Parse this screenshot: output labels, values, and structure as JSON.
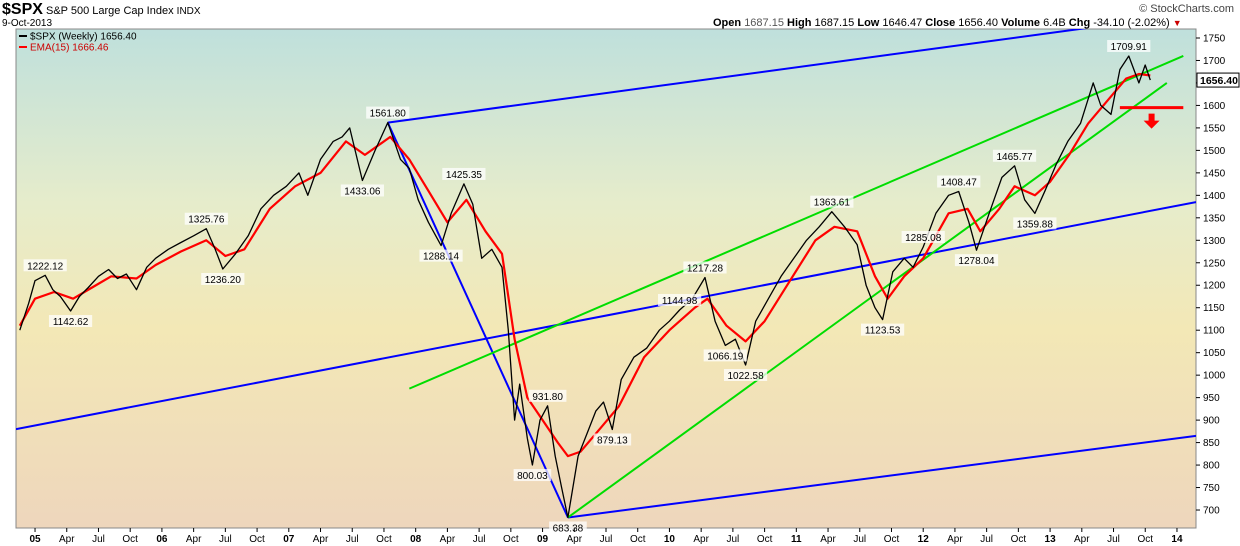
{
  "header": {
    "symbol": "$SPX",
    "name": "S&P 500 Large Cap Index",
    "exchange": "INDX",
    "date": "9-Oct-2013",
    "open_label": "Open",
    "open": "1687.15",
    "high_label": "High",
    "high": "1687.15",
    "low_label": "Low",
    "low": "1646.47",
    "close_label": "Close",
    "close": "1656.40",
    "volume_label": "Volume",
    "volume": "6.4B",
    "chg_label": "Chg",
    "chg": "-34.10 (-2.02%)",
    "watermark": "© StockCharts.com"
  },
  "chart_data": {
    "type": "line",
    "legend": [
      {
        "name": "$SPX (Weekly) 1656.40",
        "color": "#000000"
      },
      {
        "name": "EMA(15) 1666.46",
        "color": "#ff0000"
      }
    ],
    "legend_placement": "top-left",
    "last_price_tag": "1656.40",
    "x_ticks": [
      "05",
      "Apr",
      "Jul",
      "Oct",
      "06",
      "Apr",
      "Jul",
      "Oct",
      "07",
      "Apr",
      "Jul",
      "Oct",
      "08",
      "Apr",
      "Jul",
      "Oct",
      "09",
      "Apr",
      "Jul",
      "Oct",
      "10",
      "Apr",
      "Jul",
      "Oct",
      "11",
      "Apr",
      "Jul",
      "Oct",
      "12",
      "Apr",
      "Jul",
      "Oct",
      "13",
      "Apr",
      "Jul",
      "Oct",
      "14"
    ],
    "y_ticks": [
      700,
      750,
      800,
      850,
      900,
      950,
      1000,
      1050,
      1100,
      1150,
      1200,
      1250,
      1300,
      1350,
      1400,
      1450,
      1500,
      1550,
      1600,
      1650,
      1700,
      1750
    ],
    "ylim": [
      660,
      1770
    ],
    "xlim": [
      2004.85,
      2014.15
    ],
    "grid": false,
    "series": [
      {
        "color": "#000000",
        "points": [
          [
            2004.88,
            1100
          ],
          [
            2004.95,
            1160
          ],
          [
            2005.0,
            1210
          ],
          [
            2005.08,
            1222.12
          ],
          [
            2005.14,
            1190
          ],
          [
            2005.2,
            1175
          ],
          [
            2005.28,
            1142.62
          ],
          [
            2005.35,
            1175
          ],
          [
            2005.42,
            1195
          ],
          [
            2005.5,
            1220
          ],
          [
            2005.58,
            1235
          ],
          [
            2005.65,
            1215
          ],
          [
            2005.72,
            1225
          ],
          [
            2005.8,
            1190
          ],
          [
            2005.88,
            1240
          ],
          [
            2005.95,
            1260
          ],
          [
            2006.05,
            1280
          ],
          [
            2006.15,
            1295
          ],
          [
            2006.25,
            1310
          ],
          [
            2006.35,
            1325.76
          ],
          [
            2006.42,
            1280
          ],
          [
            2006.48,
            1236.2
          ],
          [
            2006.58,
            1270
          ],
          [
            2006.68,
            1310
          ],
          [
            2006.78,
            1370
          ],
          [
            2006.88,
            1400
          ],
          [
            2006.98,
            1420
          ],
          [
            2007.08,
            1450
          ],
          [
            2007.15,
            1400
          ],
          [
            2007.25,
            1480
          ],
          [
            2007.35,
            1520
          ],
          [
            2007.42,
            1530
          ],
          [
            2007.48,
            1550
          ],
          [
            2007.58,
            1433.06
          ],
          [
            2007.68,
            1500
          ],
          [
            2007.78,
            1561.8
          ],
          [
            2007.88,
            1480
          ],
          [
            2007.95,
            1460
          ],
          [
            2008.02,
            1390
          ],
          [
            2008.1,
            1340
          ],
          [
            2008.2,
            1288.14
          ],
          [
            2008.28,
            1360
          ],
          [
            2008.38,
            1425.35
          ],
          [
            2008.45,
            1380
          ],
          [
            2008.52,
            1260
          ],
          [
            2008.6,
            1280
          ],
          [
            2008.68,
            1240
          ],
          [
            2008.73,
            1100
          ],
          [
            2008.78,
            900
          ],
          [
            2008.82,
            980
          ],
          [
            2008.88,
            860
          ],
          [
            2008.92,
            800.03
          ],
          [
            2008.98,
            900
          ],
          [
            2009.04,
            931.8
          ],
          [
            2009.1,
            820
          ],
          [
            2009.15,
            750
          ],
          [
            2009.2,
            683.38
          ],
          [
            2009.28,
            820
          ],
          [
            2009.35,
            870
          ],
          [
            2009.42,
            920
          ],
          [
            2009.48,
            940
          ],
          [
            2009.55,
            879.13
          ],
          [
            2009.62,
            990
          ],
          [
            2009.72,
            1040
          ],
          [
            2009.82,
            1060
          ],
          [
            2009.92,
            1100
          ],
          [
            2010.0,
            1120
          ],
          [
            2010.08,
            1144.98
          ],
          [
            2010.18,
            1170
          ],
          [
            2010.28,
            1217.28
          ],
          [
            2010.36,
            1120
          ],
          [
            2010.44,
            1066.19
          ],
          [
            2010.52,
            1080
          ],
          [
            2010.6,
            1022.58
          ],
          [
            2010.68,
            1120
          ],
          [
            2010.78,
            1170
          ],
          [
            2010.88,
            1220
          ],
          [
            2010.98,
            1260
          ],
          [
            2011.08,
            1300
          ],
          [
            2011.18,
            1330
          ],
          [
            2011.28,
            1363.61
          ],
          [
            2011.38,
            1330
          ],
          [
            2011.48,
            1290
          ],
          [
            2011.55,
            1200
          ],
          [
            2011.62,
            1150
          ],
          [
            2011.68,
            1123.53
          ],
          [
            2011.76,
            1230
          ],
          [
            2011.85,
            1260
          ],
          [
            2011.92,
            1240
          ],
          [
            2012.0,
            1285.08
          ],
          [
            2012.1,
            1360
          ],
          [
            2012.2,
            1400
          ],
          [
            2012.28,
            1408.47
          ],
          [
            2012.36,
            1340
          ],
          [
            2012.42,
            1278.04
          ],
          [
            2012.52,
            1360
          ],
          [
            2012.62,
            1440
          ],
          [
            2012.72,
            1465.77
          ],
          [
            2012.8,
            1390
          ],
          [
            2012.88,
            1359.88
          ],
          [
            2012.96,
            1410
          ],
          [
            2013.05,
            1470
          ],
          [
            2013.14,
            1520
          ],
          [
            2013.24,
            1560
          ],
          [
            2013.34,
            1650
          ],
          [
            2013.4,
            1600
          ],
          [
            2013.48,
            1580
          ],
          [
            2013.55,
            1680
          ],
          [
            2013.62,
            1709.91
          ],
          [
            2013.7,
            1650
          ],
          [
            2013.75,
            1690
          ],
          [
            2013.79,
            1656.4
          ]
        ]
      },
      {
        "color": "#ff0000",
        "points": [
          [
            2004.88,
            1110
          ],
          [
            2005.0,
            1170
          ],
          [
            2005.15,
            1185
          ],
          [
            2005.3,
            1170
          ],
          [
            2005.45,
            1195
          ],
          [
            2005.6,
            1220
          ],
          [
            2005.8,
            1215
          ],
          [
            2005.95,
            1245
          ],
          [
            2006.15,
            1275
          ],
          [
            2006.35,
            1300
          ],
          [
            2006.5,
            1265
          ],
          [
            2006.65,
            1280
          ],
          [
            2006.85,
            1370
          ],
          [
            2007.05,
            1420
          ],
          [
            2007.25,
            1450
          ],
          [
            2007.45,
            1520
          ],
          [
            2007.6,
            1490
          ],
          [
            2007.8,
            1530
          ],
          [
            2007.95,
            1480
          ],
          [
            2008.1,
            1410
          ],
          [
            2008.25,
            1340
          ],
          [
            2008.4,
            1390
          ],
          [
            2008.55,
            1320
          ],
          [
            2008.68,
            1270
          ],
          [
            2008.78,
            1080
          ],
          [
            2008.88,
            950
          ],
          [
            2009.0,
            900
          ],
          [
            2009.12,
            850
          ],
          [
            2009.2,
            820
          ],
          [
            2009.3,
            830
          ],
          [
            2009.45,
            880
          ],
          [
            2009.6,
            930
          ],
          [
            2009.8,
            1040
          ],
          [
            2010.0,
            1100
          ],
          [
            2010.2,
            1150
          ],
          [
            2010.3,
            1170
          ],
          [
            2010.45,
            1110
          ],
          [
            2010.6,
            1075
          ],
          [
            2010.75,
            1120
          ],
          [
            2010.95,
            1210
          ],
          [
            2011.15,
            1300
          ],
          [
            2011.3,
            1330
          ],
          [
            2011.48,
            1320
          ],
          [
            2011.62,
            1220
          ],
          [
            2011.72,
            1170
          ],
          [
            2011.85,
            1220
          ],
          [
            2012.0,
            1260
          ],
          [
            2012.2,
            1360
          ],
          [
            2012.35,
            1370
          ],
          [
            2012.45,
            1320
          ],
          [
            2012.6,
            1370
          ],
          [
            2012.72,
            1420
          ],
          [
            2012.88,
            1400
          ],
          [
            2013.0,
            1430
          ],
          [
            2013.15,
            1490
          ],
          [
            2013.3,
            1560
          ],
          [
            2013.45,
            1610
          ],
          [
            2013.6,
            1660
          ],
          [
            2013.7,
            1670
          ],
          [
            2013.79,
            1666.46
          ]
        ]
      }
    ],
    "trendlines": [
      {
        "color": "#0000ff",
        "points": [
          [
            2004.85,
            880
          ],
          [
            2014.15,
            1385
          ]
        ]
      },
      {
        "color": "#0000ff",
        "points": [
          [
            2009.2,
            683.38
          ],
          [
            2014.15,
            865
          ]
        ]
      },
      {
        "color": "#0000ff",
        "points": [
          [
            2007.78,
            1561.8
          ],
          [
            2009.2,
            683.38
          ]
        ]
      },
      {
        "color": "#0000ff",
        "points": [
          [
            2007.78,
            1561.8
          ],
          [
            2014.15,
            1805
          ]
        ]
      },
      {
        "color": "#00dd00",
        "points": [
          [
            2007.95,
            970
          ],
          [
            2014.05,
            1710
          ]
        ]
      },
      {
        "color": "#00dd00",
        "points": [
          [
            2009.2,
            683.38
          ],
          [
            2013.92,
            1650
          ]
        ]
      }
    ],
    "annotations": [
      {
        "text": "1222.12",
        "x": 2005.08,
        "y": 1222.12,
        "pos": "above"
      },
      {
        "text": "1142.62",
        "x": 2005.28,
        "y": 1142.62,
        "pos": "below"
      },
      {
        "text": "1325.76",
        "x": 2006.35,
        "y": 1325.76,
        "pos": "above"
      },
      {
        "text": "1236.20",
        "x": 2006.48,
        "y": 1236.2,
        "pos": "below"
      },
      {
        "text": "1433.06",
        "x": 2007.58,
        "y": 1433.06,
        "pos": "below"
      },
      {
        "text": "1561.80",
        "x": 2007.78,
        "y": 1561.8,
        "pos": "above"
      },
      {
        "text": "1288.14",
        "x": 2008.2,
        "y": 1288.14,
        "pos": "below"
      },
      {
        "text": "1425.35",
        "x": 2008.38,
        "y": 1425.35,
        "pos": "above"
      },
      {
        "text": "931.80",
        "x": 2009.04,
        "y": 931.8,
        "pos": "above"
      },
      {
        "text": "800.03",
        "x": 2008.92,
        "y": 800.03,
        "pos": "below"
      },
      {
        "text": "683.38",
        "x": 2009.2,
        "y": 683.38,
        "pos": "below"
      },
      {
        "text": "879.13",
        "x": 2009.55,
        "y": 879.13,
        "pos": "below"
      },
      {
        "text": "1144.98",
        "x": 2010.08,
        "y": 1144.98,
        "pos": "above"
      },
      {
        "text": "1217.28",
        "x": 2010.28,
        "y": 1217.28,
        "pos": "above"
      },
      {
        "text": "1066.19",
        "x": 2010.44,
        "y": 1066.19,
        "pos": "below"
      },
      {
        "text": "1022.58",
        "x": 2010.6,
        "y": 1022.58,
        "pos": "below"
      },
      {
        "text": "1363.61",
        "x": 2011.28,
        "y": 1363.61,
        "pos": "above"
      },
      {
        "text": "1123.53",
        "x": 2011.68,
        "y": 1123.53,
        "pos": "below"
      },
      {
        "text": "1285.08",
        "x": 2012.0,
        "y": 1285.08,
        "pos": "above"
      },
      {
        "text": "1408.47",
        "x": 2012.28,
        "y": 1408.47,
        "pos": "above"
      },
      {
        "text": "1278.04",
        "x": 2012.42,
        "y": 1278.04,
        "pos": "below"
      },
      {
        "text": "1465.77",
        "x": 2012.72,
        "y": 1465.77,
        "pos": "above"
      },
      {
        "text": "1359.88",
        "x": 2012.88,
        "y": 1359.88,
        "pos": "below"
      },
      {
        "text": "1709.91",
        "x": 2013.62,
        "y": 1709.91,
        "pos": "above"
      }
    ],
    "support_marker": {
      "color": "#ff0000",
      "x_from": 2013.55,
      "x_to": 2014.05,
      "y": 1595
    }
  }
}
